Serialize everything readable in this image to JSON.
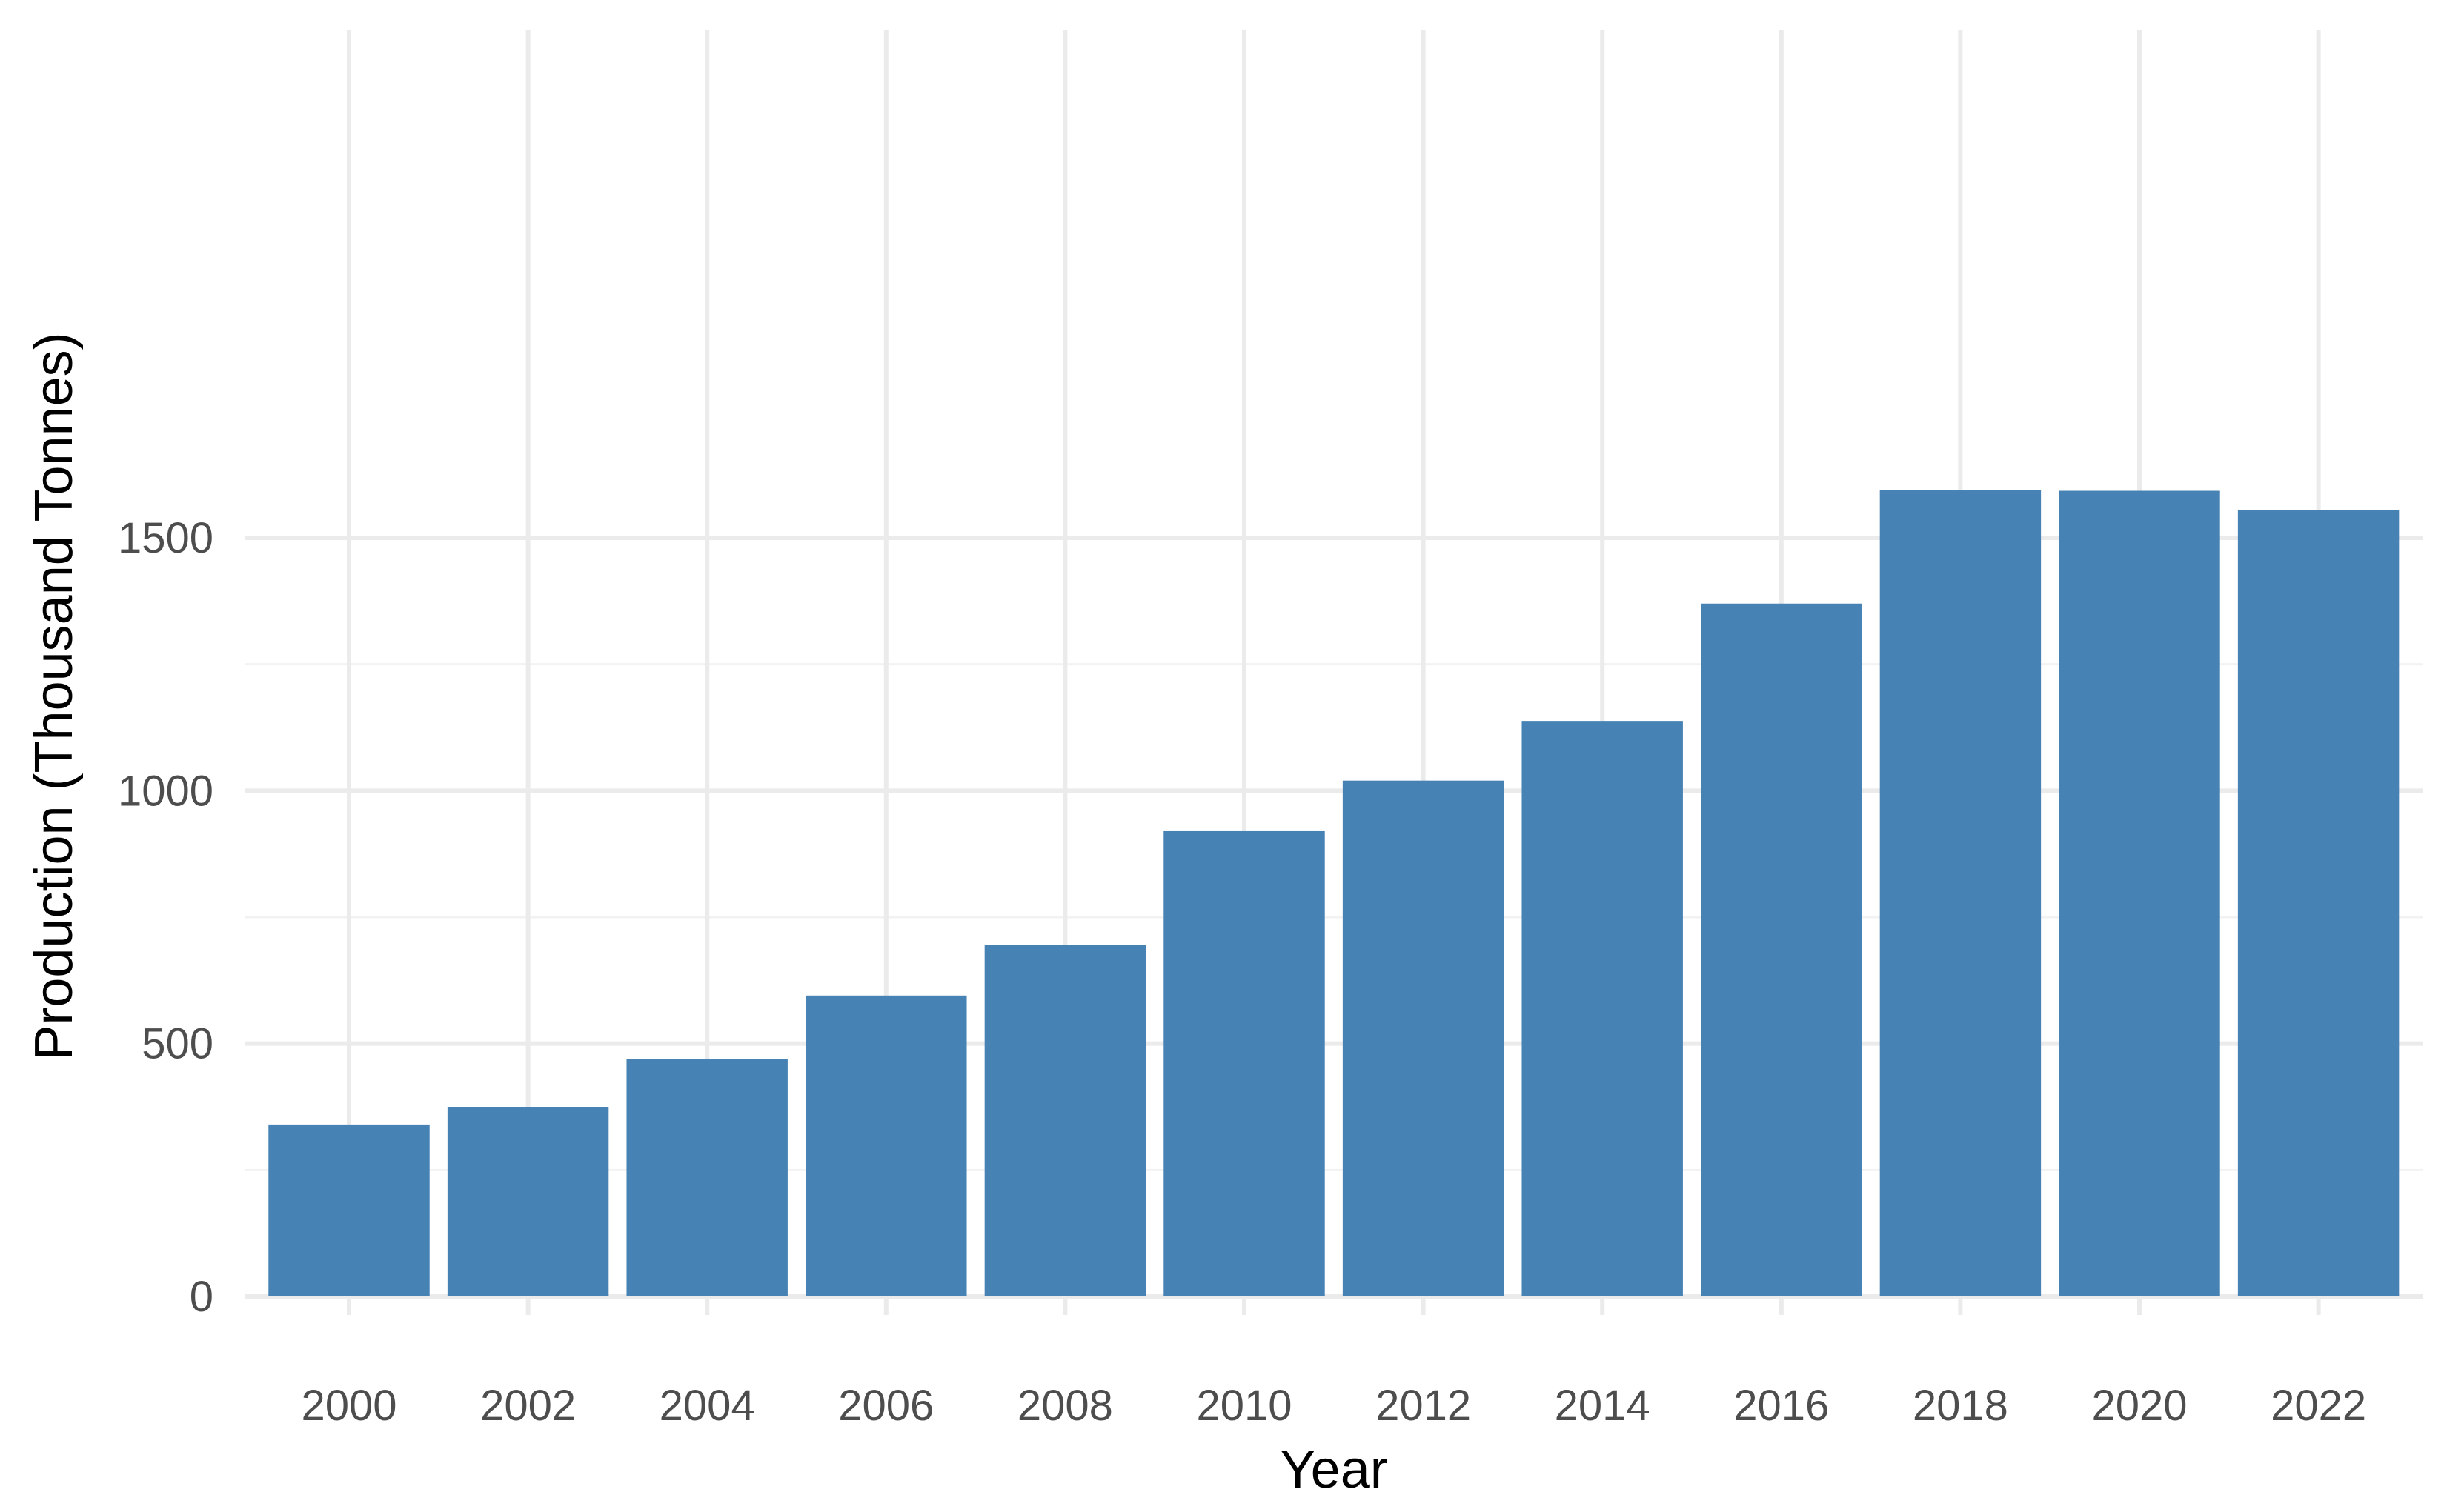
{
  "chart_data": {
    "type": "bar",
    "title": "",
    "xlabel": "Year",
    "ylabel": "Production (Thousand Tonnes)",
    "categories": [
      "2000",
      "2002",
      "2004",
      "2006",
      "2008",
      "2010",
      "2012",
      "2014",
      "2016",
      "2018",
      "2020",
      "2022"
    ],
    "values": [
      340,
      375,
      470,
      595,
      695,
      920,
      1020,
      1138,
      1370,
      1595,
      1593,
      1555
    ],
    "ylim": [
      0,
      1650
    ],
    "yticks": [
      0,
      500,
      1000,
      1500
    ],
    "ytick_labels": [
      "0",
      "500",
      "1000",
      "1500"
    ],
    "grid": true,
    "legend": "none",
    "bar_color": "#4682B4",
    "grid_color": "#EBEBEB"
  }
}
